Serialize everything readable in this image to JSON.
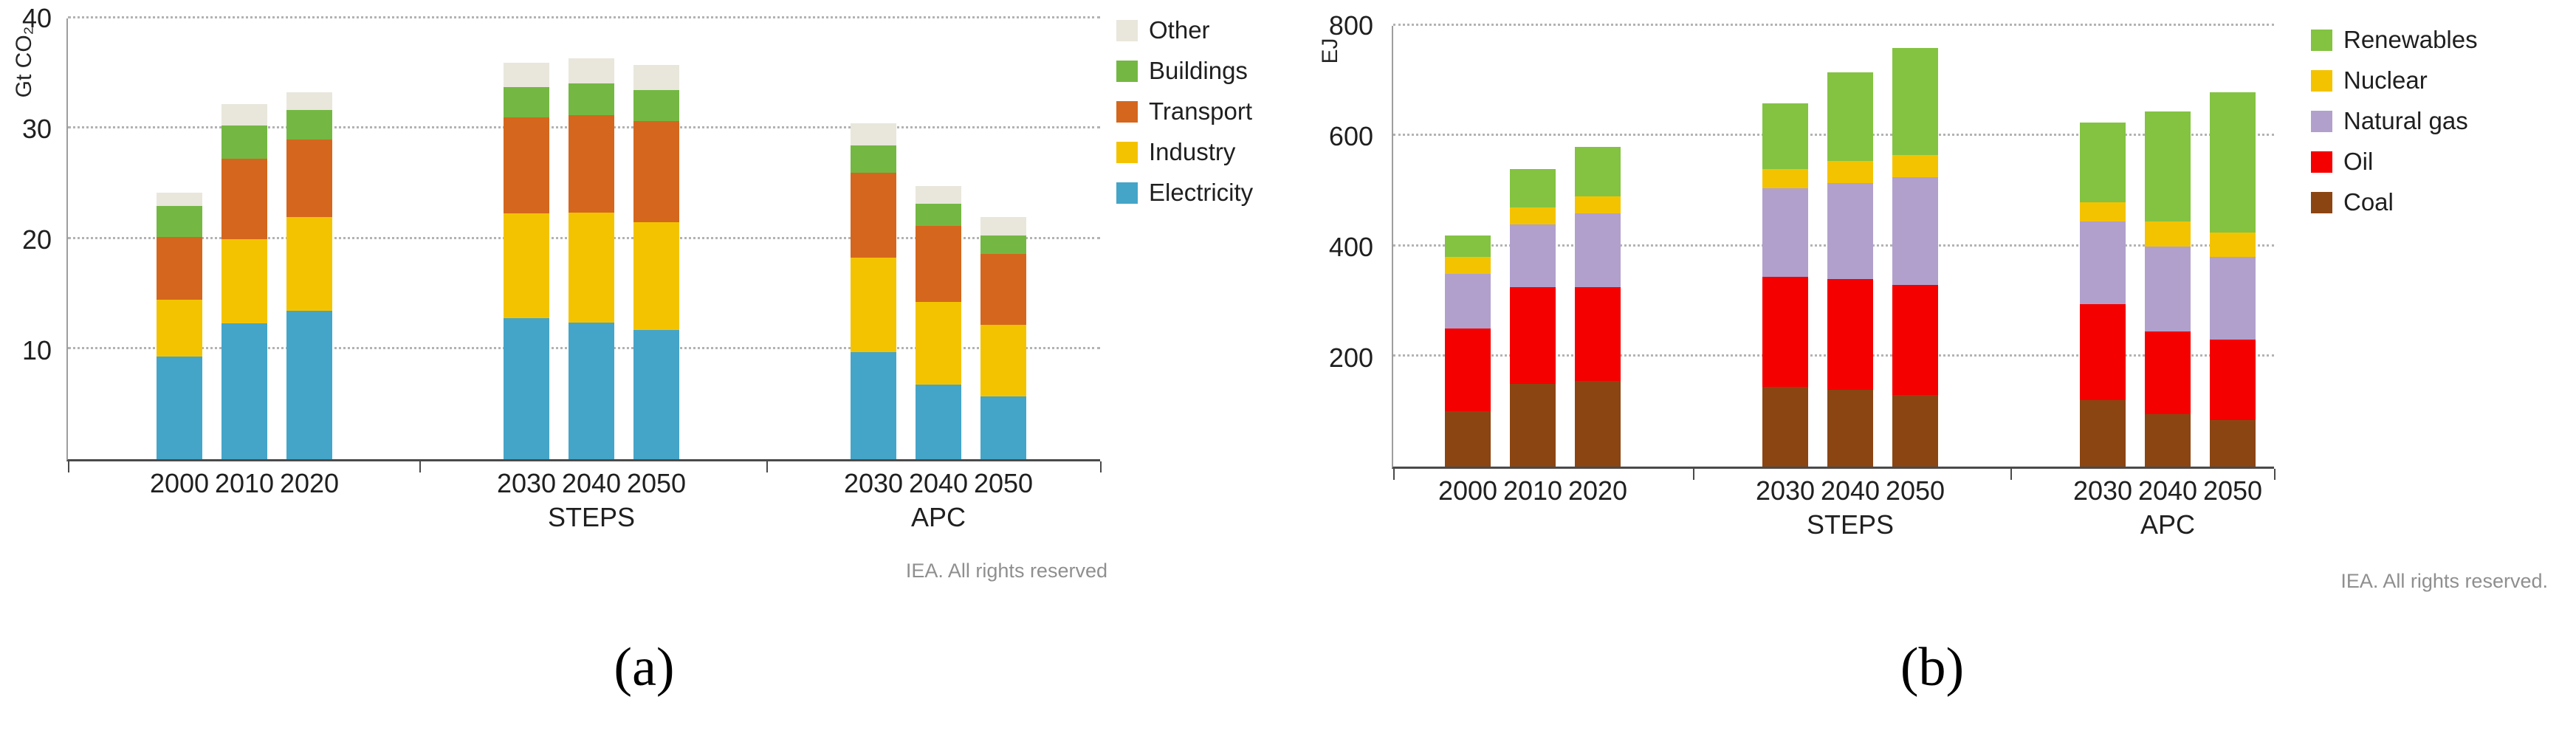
{
  "chart_data": [
    {
      "id": "a",
      "type": "bar",
      "stacked": true,
      "ylabel": "Gt CO₂",
      "ylim": [
        0,
        40
      ],
      "yticks": [
        10,
        20,
        30,
        40
      ],
      "grid": "dotted-horizontal",
      "legend_position": "top-right",
      "footer": "IEA. All rights reserved",
      "caption": "(a)",
      "groups": [
        {
          "label": "",
          "categories": [
            "2000",
            "2010",
            "2020"
          ]
        },
        {
          "label": "STEPS",
          "categories": [
            "2030",
            "2040",
            "2050"
          ]
        },
        {
          "label": "APC",
          "categories": [
            "2030",
            "2040",
            "2050"
          ]
        }
      ],
      "series": [
        {
          "name": "Electricity",
          "color": "#44A5C8",
          "values": [
            9.3,
            12.3,
            13.5,
            12.8,
            12.4,
            11.7,
            9.7,
            6.8,
            5.7
          ]
        },
        {
          "name": "Industry",
          "color": "#F4C300",
          "values": [
            5.2,
            7.7,
            8.5,
            9.5,
            10.0,
            9.8,
            8.6,
            7.5,
            6.5
          ]
        },
        {
          "name": "Transport",
          "color": "#D4671D",
          "values": [
            5.7,
            7.3,
            7.0,
            8.7,
            8.8,
            9.2,
            7.7,
            6.9,
            6.4
          ]
        },
        {
          "name": "Buildings",
          "color": "#74B843",
          "values": [
            2.8,
            3.0,
            2.7,
            2.8,
            2.9,
            2.8,
            2.5,
            2.0,
            1.7
          ]
        },
        {
          "name": "Other",
          "color": "#E9E6DC",
          "values": [
            1.2,
            1.9,
            1.6,
            2.2,
            2.3,
            2.3,
            2.0,
            1.6,
            1.7
          ]
        }
      ],
      "legend_order_top_to_bottom": [
        "Other",
        "Buildings",
        "Transport",
        "Industry",
        "Electricity"
      ]
    },
    {
      "id": "b",
      "type": "bar",
      "stacked": true,
      "ylabel": "EJ",
      "ylim": [
        0,
        800
      ],
      "yticks": [
        200,
        400,
        600,
        800
      ],
      "grid": "dotted-horizontal",
      "legend_position": "top-right",
      "footer": "IEA. All rights reserved.",
      "caption": "(b)",
      "groups": [
        {
          "label": "",
          "categories": [
            "2000",
            "2010",
            "2020"
          ]
        },
        {
          "label": "STEPS",
          "categories": [
            "2030",
            "2040",
            "2050"
          ]
        },
        {
          "label": "APC",
          "categories": [
            "2030",
            "2040",
            "2050"
          ]
        }
      ],
      "series": [
        {
          "name": "Coal",
          "color": "#8B4513",
          "values": [
            100,
            150,
            155,
            145,
            140,
            130,
            120,
            95,
            85
          ]
        },
        {
          "name": "Oil",
          "color": "#F40000",
          "values": [
            150,
            175,
            170,
            200,
            200,
            200,
            175,
            150,
            145
          ]
        },
        {
          "name": "Natural gas",
          "color": "#B1A0CC",
          "values": [
            100,
            115,
            135,
            160,
            175,
            195,
            150,
            155,
            150
          ]
        },
        {
          "name": "Nuclear",
          "color": "#F4C300",
          "values": [
            30,
            30,
            30,
            35,
            40,
            40,
            35,
            45,
            45
          ]
        },
        {
          "name": "Renewables",
          "color": "#83C341",
          "values": [
            40,
            70,
            90,
            120,
            160,
            195,
            145,
            200,
            255
          ]
        }
      ],
      "legend_order_top_to_bottom": [
        "Renewables",
        "Nuclear",
        "Natural gas",
        "Oil",
        "Coal"
      ]
    }
  ]
}
